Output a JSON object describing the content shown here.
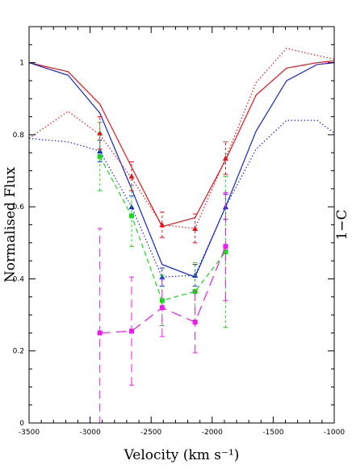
{
  "chart_data": {
    "type": "line",
    "xlabel": "Velocity (km s⁻¹)",
    "ylabel": "Normalised Flux",
    "right_label": "1−C",
    "xlim": [
      -3500,
      -1000
    ],
    "ylim": [
      0,
      1.1
    ],
    "x_ticks": [
      -3500,
      -3000,
      -2500,
      -2000,
      -1500,
      -1000
    ],
    "x_tick_labels": [
      "-3500",
      "-3000",
      "-2500",
      "-2000",
      "-1500",
      "-1000"
    ],
    "y_ticks": [
      0,
      0.2,
      0.4,
      0.6,
      0.8,
      1
    ],
    "y_tick_labels": [
      "0",
      "0.2",
      "0.4",
      "0.6",
      "0.8",
      "1"
    ],
    "grid": false,
    "series": [
      {
        "color": "#e8141c",
        "dash": "solid",
        "marker": "none",
        "points": [
          [
            -3500,
            1.0
          ],
          [
            -3180,
            0.975
          ],
          [
            -2920,
            0.885
          ],
          [
            -2660,
            0.71
          ],
          [
            -2410,
            0.545
          ],
          [
            -2140,
            0.57
          ],
          [
            -1890,
            0.73
          ],
          [
            -1640,
            0.91
          ],
          [
            -1390,
            0.985
          ],
          [
            -1140,
            1.0
          ],
          [
            -1000,
            1.005
          ]
        ]
      },
      {
        "color": "#1426d8",
        "dash": "solid",
        "marker": "none",
        "points": [
          [
            -3500,
            1.0
          ],
          [
            -3180,
            0.965
          ],
          [
            -2920,
            0.86
          ],
          [
            -2660,
            0.65
          ],
          [
            -2410,
            0.44
          ],
          [
            -2140,
            0.405
          ],
          [
            -1890,
            0.6
          ],
          [
            -1640,
            0.81
          ],
          [
            -1390,
            0.95
          ],
          [
            -1140,
            0.995
          ],
          [
            -1000,
            1.0
          ]
        ]
      },
      {
        "color": "#e8141c",
        "dash": "dotted",
        "marker": "triangle",
        "points": [
          [
            -3500,
            0.79
          ],
          [
            -3180,
            0.865
          ],
          [
            -2920,
            0.8
          ],
          [
            -2660,
            0.68
          ],
          [
            -2410,
            0.55
          ],
          [
            -2140,
            0.54
          ],
          [
            -1890,
            0.735
          ],
          [
            -1640,
            0.945
          ],
          [
            -1390,
            1.04
          ],
          [
            -1140,
            1.02
          ],
          [
            -1000,
            1.01
          ]
        ],
        "markers": [
          [
            -2920,
            0.805
          ],
          [
            -2660,
            0.685
          ],
          [
            -2410,
            0.55
          ],
          [
            -2140,
            0.54
          ],
          [
            -1890,
            0.735
          ]
        ],
        "errors": [
          0.045,
          0.04,
          0.035,
          0.04,
          0.045
        ]
      },
      {
        "color": "#1426d8",
        "dash": "dotted",
        "marker": "triangle",
        "points": [
          [
            -3500,
            0.79
          ],
          [
            -3180,
            0.78
          ],
          [
            -2920,
            0.755
          ],
          [
            -2660,
            0.6
          ],
          [
            -2410,
            0.405
          ],
          [
            -2140,
            0.41
          ],
          [
            -1890,
            0.6
          ],
          [
            -1640,
            0.76
          ],
          [
            -1390,
            0.84
          ],
          [
            -1140,
            0.84
          ],
          [
            -1000,
            0.805
          ]
        ],
        "markers": [
          [
            -2920,
            0.755
          ],
          [
            -2660,
            0.6
          ],
          [
            -2410,
            0.405
          ],
          [
            -2140,
            0.41
          ],
          [
            -1890,
            0.6
          ]
        ],
        "errors": [
          0.03,
          0.03,
          0.025,
          0.03,
          0.035
        ]
      },
      {
        "color": "#18d818",
        "dash": "dashed",
        "marker": "square",
        "points": [
          [
            -2920,
            0.74
          ],
          [
            -2660,
            0.575
          ],
          [
            -2410,
            0.34
          ],
          [
            -2140,
            0.365
          ],
          [
            -1890,
            0.475
          ]
        ],
        "errors": [
          0.095,
          0.085,
          0.07,
          0.08,
          0.21
        ]
      },
      {
        "color": "#f018ee",
        "dash": "longdash",
        "marker": "square",
        "points": [
          [
            -2920,
            0.25
          ],
          [
            -2660,
            0.255
          ],
          [
            -2410,
            0.32
          ],
          [
            -2140,
            0.28
          ],
          [
            -1890,
            0.49
          ]
        ],
        "errors": [
          0.29,
          0.15,
          0.08,
          0.085,
          0.15
        ]
      }
    ]
  }
}
